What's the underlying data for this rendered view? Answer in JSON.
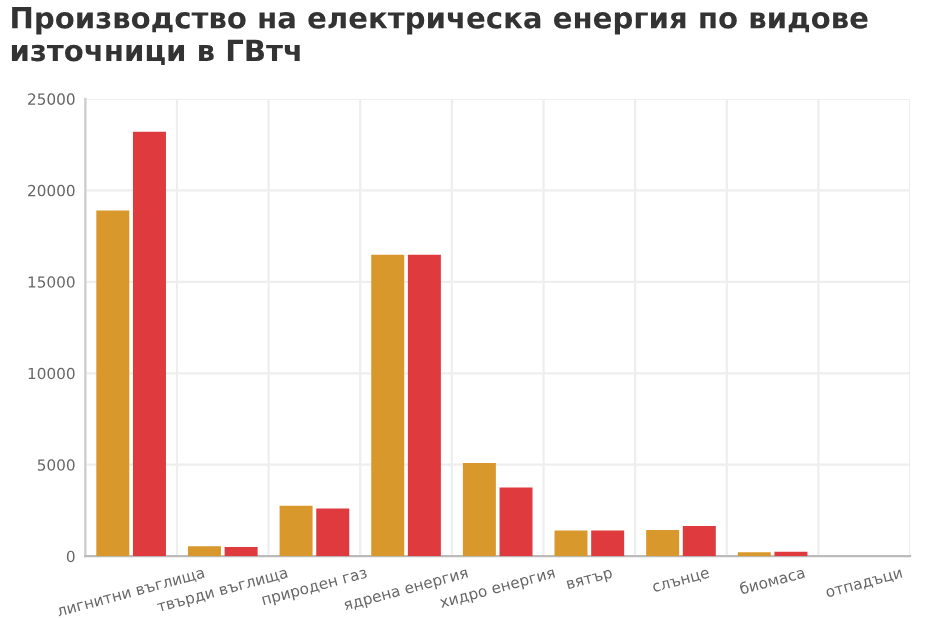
{
  "chart_data": {
    "type": "bar",
    "title": "Производство на електрическа енергия по видове\nизточници в ГВтч",
    "categories": [
      "лигнитни въглища",
      "твърди въглища",
      "природен газ",
      "ядрена енергия",
      "хидро енергия",
      "вятър",
      "слънце",
      "биомаса",
      "отпадъци"
    ],
    "series": [
      {
        "color": "#d9982c",
        "values": [
          18900,
          540,
          2760,
          16480,
          5090,
          1400,
          1430,
          215,
          0
        ]
      },
      {
        "color": "#df3b3e",
        "values": [
          23200,
          500,
          2610,
          16480,
          3760,
          1400,
          1650,
          250,
          0
        ]
      }
    ],
    "ylim": [
      0,
      25000
    ],
    "yticks": [
      0,
      5000,
      10000,
      15000,
      20000,
      25000
    ],
    "grid": true,
    "legend": false
  }
}
